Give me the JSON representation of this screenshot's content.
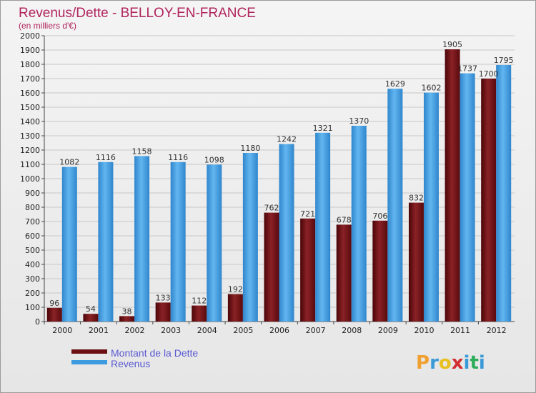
{
  "title": "Revenus/Dette - BELLOY-EN-FRANCE",
  "subtitle": "(en milliers d'€)",
  "legend": [
    {
      "label": "Montant de la Dette",
      "color": "#6b0f12"
    },
    {
      "label": "Revenus",
      "color": "#3e9be0"
    }
  ],
  "logo": {
    "letters": [
      "P",
      "r",
      "o",
      "x",
      "i",
      "t",
      "i"
    ]
  },
  "chart_data": {
    "type": "bar",
    "categories": [
      "2000",
      "2001",
      "2002",
      "2003",
      "2004",
      "2005",
      "2006",
      "2007",
      "2008",
      "2009",
      "2010",
      "2011",
      "2012"
    ],
    "series": [
      {
        "name": "Montant de la Dette",
        "color": "#6b0f12",
        "values": [
          96,
          54,
          38,
          133,
          112,
          192,
          762,
          721,
          678,
          706,
          832,
          1905,
          1700
        ]
      },
      {
        "name": "Revenus",
        "color": "#3e9be0",
        "values": [
          1082,
          1116,
          1158,
          1116,
          1098,
          1180,
          1242,
          1321,
          1370,
          1629,
          1602,
          1737,
          1795
        ]
      }
    ],
    "ylim": [
      0,
      2000
    ],
    "ystep": 100,
    "grid": true,
    "legend_position": "bottom-left"
  }
}
